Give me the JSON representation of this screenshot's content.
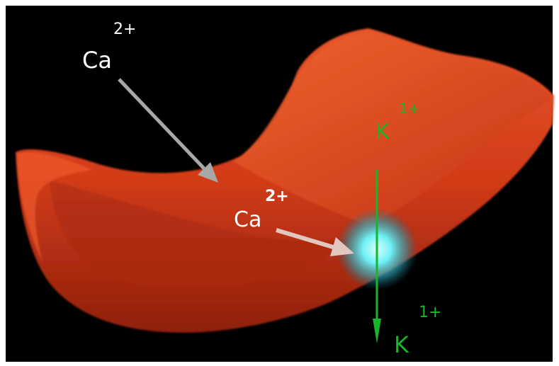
{
  "labels": {
    "calcium_outside": {
      "symbol": "Ca",
      "charge": "2+"
    },
    "calcium_inside": {
      "symbol": "Ca",
      "charge": "2+"
    },
    "potassium_inside": {
      "symbol": "K",
      "charge": "1+"
    },
    "potassium_outside": {
      "symbol": "K",
      "charge": "1+"
    }
  },
  "colors": {
    "background": "#000000",
    "cell": "#d83a1a",
    "calcium_text": "#ffffff",
    "calcium_arrow": "#a8a8a8",
    "potassium": "#17b52a",
    "channel_glow": "#5fe6ec"
  }
}
